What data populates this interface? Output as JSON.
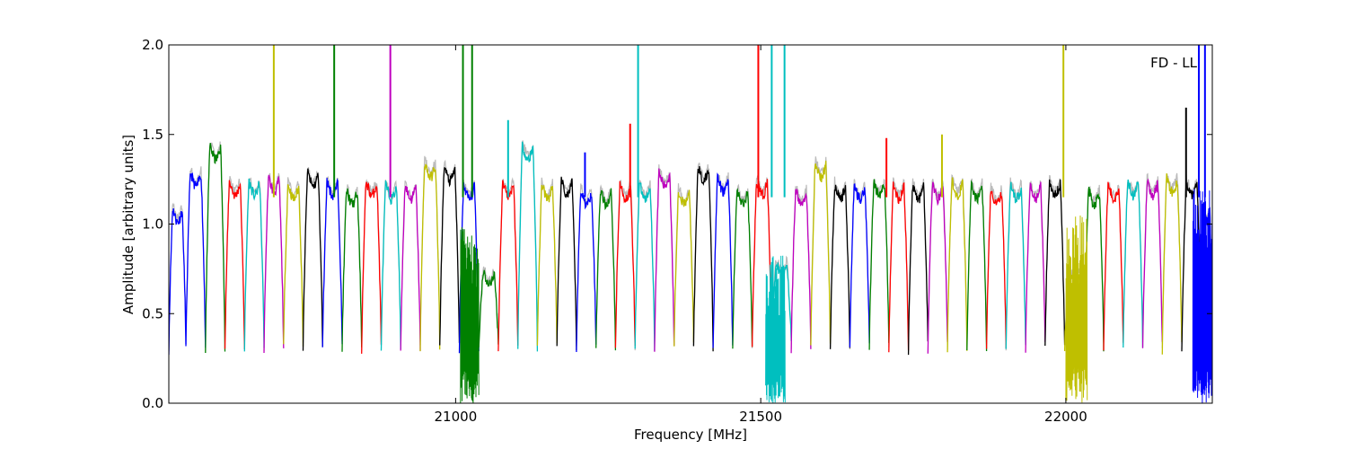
{
  "chart_data": {
    "type": "line",
    "title": "",
    "annotation": "FD - LL",
    "xlabel": "Frequency [MHz]",
    "ylabel": "Amplitude [arbitrary units]",
    "xlim": [
      20530,
      22240
    ],
    "ylim": [
      0.0,
      2.0
    ],
    "xticks": [
      21000,
      21500,
      22000
    ],
    "xtick_labels": [
      "21000",
      "21500",
      "22000"
    ],
    "yticks": [
      0.0,
      0.5,
      1.0,
      1.5,
      2.0
    ],
    "ytick_labels": [
      "0.0",
      "0.5",
      "1.0",
      "1.5",
      "2.0"
    ],
    "grid": false,
    "description_of_data": "Repeating bandpass spectra per channel: each segment dips to ~0.3 at its edges and sits at ~1.1-1.3 in the middle; a grey background trace sits behind the colored traces.",
    "channel_width_mhz": 32,
    "color_cycle": [
      "#0000ff",
      "#008000",
      "#ff0000",
      "#00bfbf",
      "#bf00bf",
      "#bfbf00",
      "#000000"
    ],
    "background_trace_color": "#bbbbbb",
    "segments": [
      {
        "start": 20530,
        "end": 20558,
        "color": "#0000ff",
        "mid": 1.05
      },
      {
        "start": 20558,
        "end": 20590,
        "color": "#0000ff",
        "mid": 1.25
      },
      {
        "start": 20590,
        "end": 20622,
        "color": "#008000",
        "mid": 1.4
      },
      {
        "start": 20622,
        "end": 20654,
        "color": "#ff0000",
        "mid": 1.2
      },
      {
        "start": 20654,
        "end": 20686,
        "color": "#00bfbf",
        "mid": 1.2
      },
      {
        "start": 20686,
        "end": 20718,
        "color": "#bf00bf",
        "mid": 1.22
      },
      {
        "start": 20718,
        "end": 20750,
        "color": "#bfbf00",
        "mid": 1.18
      },
      {
        "start": 20750,
        "end": 20782,
        "color": "#000000",
        "mid": 1.25
      },
      {
        "start": 20782,
        "end": 20814,
        "color": "#0000ff",
        "mid": 1.2
      },
      {
        "start": 20814,
        "end": 20846,
        "color": "#008000",
        "mid": 1.15
      },
      {
        "start": 20846,
        "end": 20878,
        "color": "#ff0000",
        "mid": 1.2
      },
      {
        "start": 20878,
        "end": 20910,
        "color": "#00bfbf",
        "mid": 1.18
      },
      {
        "start": 20910,
        "end": 20942,
        "color": "#bf00bf",
        "mid": 1.18
      },
      {
        "start": 20942,
        "end": 20974,
        "color": "#bfbf00",
        "mid": 1.3
      },
      {
        "start": 20974,
        "end": 21006,
        "color": "#000000",
        "mid": 1.28
      },
      {
        "start": 21006,
        "end": 21038,
        "color": "#0000ff",
        "mid": 1.18
      },
      {
        "start": 21038,
        "end": 21070,
        "color": "#008000",
        "mid": 0.7
      },
      {
        "start": 21070,
        "end": 21102,
        "color": "#ff0000",
        "mid": 1.2
      },
      {
        "start": 21102,
        "end": 21134,
        "color": "#00bfbf",
        "mid": 1.4
      },
      {
        "start": 21134,
        "end": 21166,
        "color": "#bfbf00",
        "mid": 1.18
      },
      {
        "start": 21166,
        "end": 21198,
        "color": "#000000",
        "mid": 1.2
      },
      {
        "start": 21198,
        "end": 21230,
        "color": "#0000ff",
        "mid": 1.15
      },
      {
        "start": 21230,
        "end": 21262,
        "color": "#008000",
        "mid": 1.15
      },
      {
        "start": 21262,
        "end": 21294,
        "color": "#ff0000",
        "mid": 1.18
      },
      {
        "start": 21294,
        "end": 21326,
        "color": "#00bfbf",
        "mid": 1.18
      },
      {
        "start": 21326,
        "end": 21358,
        "color": "#bf00bf",
        "mid": 1.25
      },
      {
        "start": 21358,
        "end": 21390,
        "color": "#bfbf00",
        "mid": 1.15
      },
      {
        "start": 21390,
        "end": 21422,
        "color": "#000000",
        "mid": 1.28
      },
      {
        "start": 21422,
        "end": 21454,
        "color": "#0000ff",
        "mid": 1.22
      },
      {
        "start": 21454,
        "end": 21486,
        "color": "#008000",
        "mid": 1.15
      },
      {
        "start": 21486,
        "end": 21518,
        "color": "#ff0000",
        "mid": 1.2
      },
      {
        "start": 21518,
        "end": 21550,
        "color": "#00bfbf",
        "mid": 0.75
      },
      {
        "start": 21550,
        "end": 21582,
        "color": "#bf00bf",
        "mid": 1.15
      },
      {
        "start": 21582,
        "end": 21614,
        "color": "#bfbf00",
        "mid": 1.3
      },
      {
        "start": 21614,
        "end": 21646,
        "color": "#000000",
        "mid": 1.18
      },
      {
        "start": 21646,
        "end": 21678,
        "color": "#0000ff",
        "mid": 1.18
      },
      {
        "start": 21678,
        "end": 21710,
        "color": "#008000",
        "mid": 1.2
      },
      {
        "start": 21710,
        "end": 21742,
        "color": "#ff0000",
        "mid": 1.18
      },
      {
        "start": 21742,
        "end": 21774,
        "color": "#000000",
        "mid": 1.18
      },
      {
        "start": 21774,
        "end": 21806,
        "color": "#bf00bf",
        "mid": 1.18
      },
      {
        "start": 21806,
        "end": 21838,
        "color": "#bfbf00",
        "mid": 1.2
      },
      {
        "start": 21838,
        "end": 21870,
        "color": "#008000",
        "mid": 1.18
      },
      {
        "start": 21870,
        "end": 21902,
        "color": "#ff0000",
        "mid": 1.15
      },
      {
        "start": 21902,
        "end": 21934,
        "color": "#00bfbf",
        "mid": 1.18
      },
      {
        "start": 21934,
        "end": 21966,
        "color": "#bf00bf",
        "mid": 1.18
      },
      {
        "start": 21966,
        "end": 21998,
        "color": "#000000",
        "mid": 1.2
      },
      {
        "start": 21998,
        "end": 22030,
        "color": "#bfbf00",
        "mid": 0.7
      },
      {
        "start": 22030,
        "end": 22062,
        "color": "#008000",
        "mid": 1.15
      },
      {
        "start": 22062,
        "end": 22094,
        "color": "#ff0000",
        "mid": 1.18
      },
      {
        "start": 22094,
        "end": 22126,
        "color": "#00bfbf",
        "mid": 1.2
      },
      {
        "start": 22126,
        "end": 22158,
        "color": "#bf00bf",
        "mid": 1.2
      },
      {
        "start": 22158,
        "end": 22190,
        "color": "#bfbf00",
        "mid": 1.22
      },
      {
        "start": 22190,
        "end": 22222,
        "color": "#000000",
        "mid": 1.2
      },
      {
        "start": 22222,
        "end": 22240,
        "color": "#0000ff",
        "mid": 1.05
      }
    ],
    "spikes": [
      {
        "x": 20702,
        "color": "#bfbf00",
        "y": 2.0
      },
      {
        "x": 20801,
        "color": "#008000",
        "y": 2.0
      },
      {
        "x": 20893,
        "color": "#bf00bf",
        "y": 2.0
      },
      {
        "x": 21012,
        "color": "#008000",
        "y": 2.0
      },
      {
        "x": 21027,
        "color": "#008000",
        "y": 2.0
      },
      {
        "x": 21299,
        "color": "#00bfbf",
        "y": 2.0
      },
      {
        "x": 21496,
        "color": "#ff0000",
        "y": 2.0
      },
      {
        "x": 21518,
        "color": "#00bfbf",
        "y": 2.0
      },
      {
        "x": 21539,
        "color": "#00bfbf",
        "y": 2.0
      },
      {
        "x": 21996,
        "color": "#bfbf00",
        "y": 2.0
      },
      {
        "x": 22228,
        "color": "#0000ff",
        "y": 2.0
      },
      {
        "x": 22218,
        "color": "#0000ff",
        "y": 2.0
      },
      {
        "x": 21286,
        "color": "#ff0000",
        "y": 1.56
      },
      {
        "x": 21706,
        "color": "#ff0000",
        "y": 1.48
      },
      {
        "x": 21797,
        "color": "#bfbf00",
        "y": 1.5
      },
      {
        "x": 21212,
        "color": "#0000ff",
        "y": 1.4
      },
      {
        "x": 21086,
        "color": "#00bfbf",
        "y": 1.58
      },
      {
        "x": 22197,
        "color": "#000000",
        "y": 1.65
      }
    ],
    "noise_bands": [
      {
        "start": 21008,
        "end": 21038,
        "color": "#008000",
        "low": 0.0,
        "high": 1.0
      },
      {
        "start": 21508,
        "end": 21540,
        "color": "#00bfbf",
        "low": 0.0,
        "high": 0.85
      },
      {
        "start": 22000,
        "end": 22035,
        "color": "#bfbf00",
        "low": 0.0,
        "high": 1.05
      },
      {
        "start": 22208,
        "end": 22240,
        "color": "#0000ff",
        "low": 0.0,
        "high": 1.2
      }
    ]
  }
}
